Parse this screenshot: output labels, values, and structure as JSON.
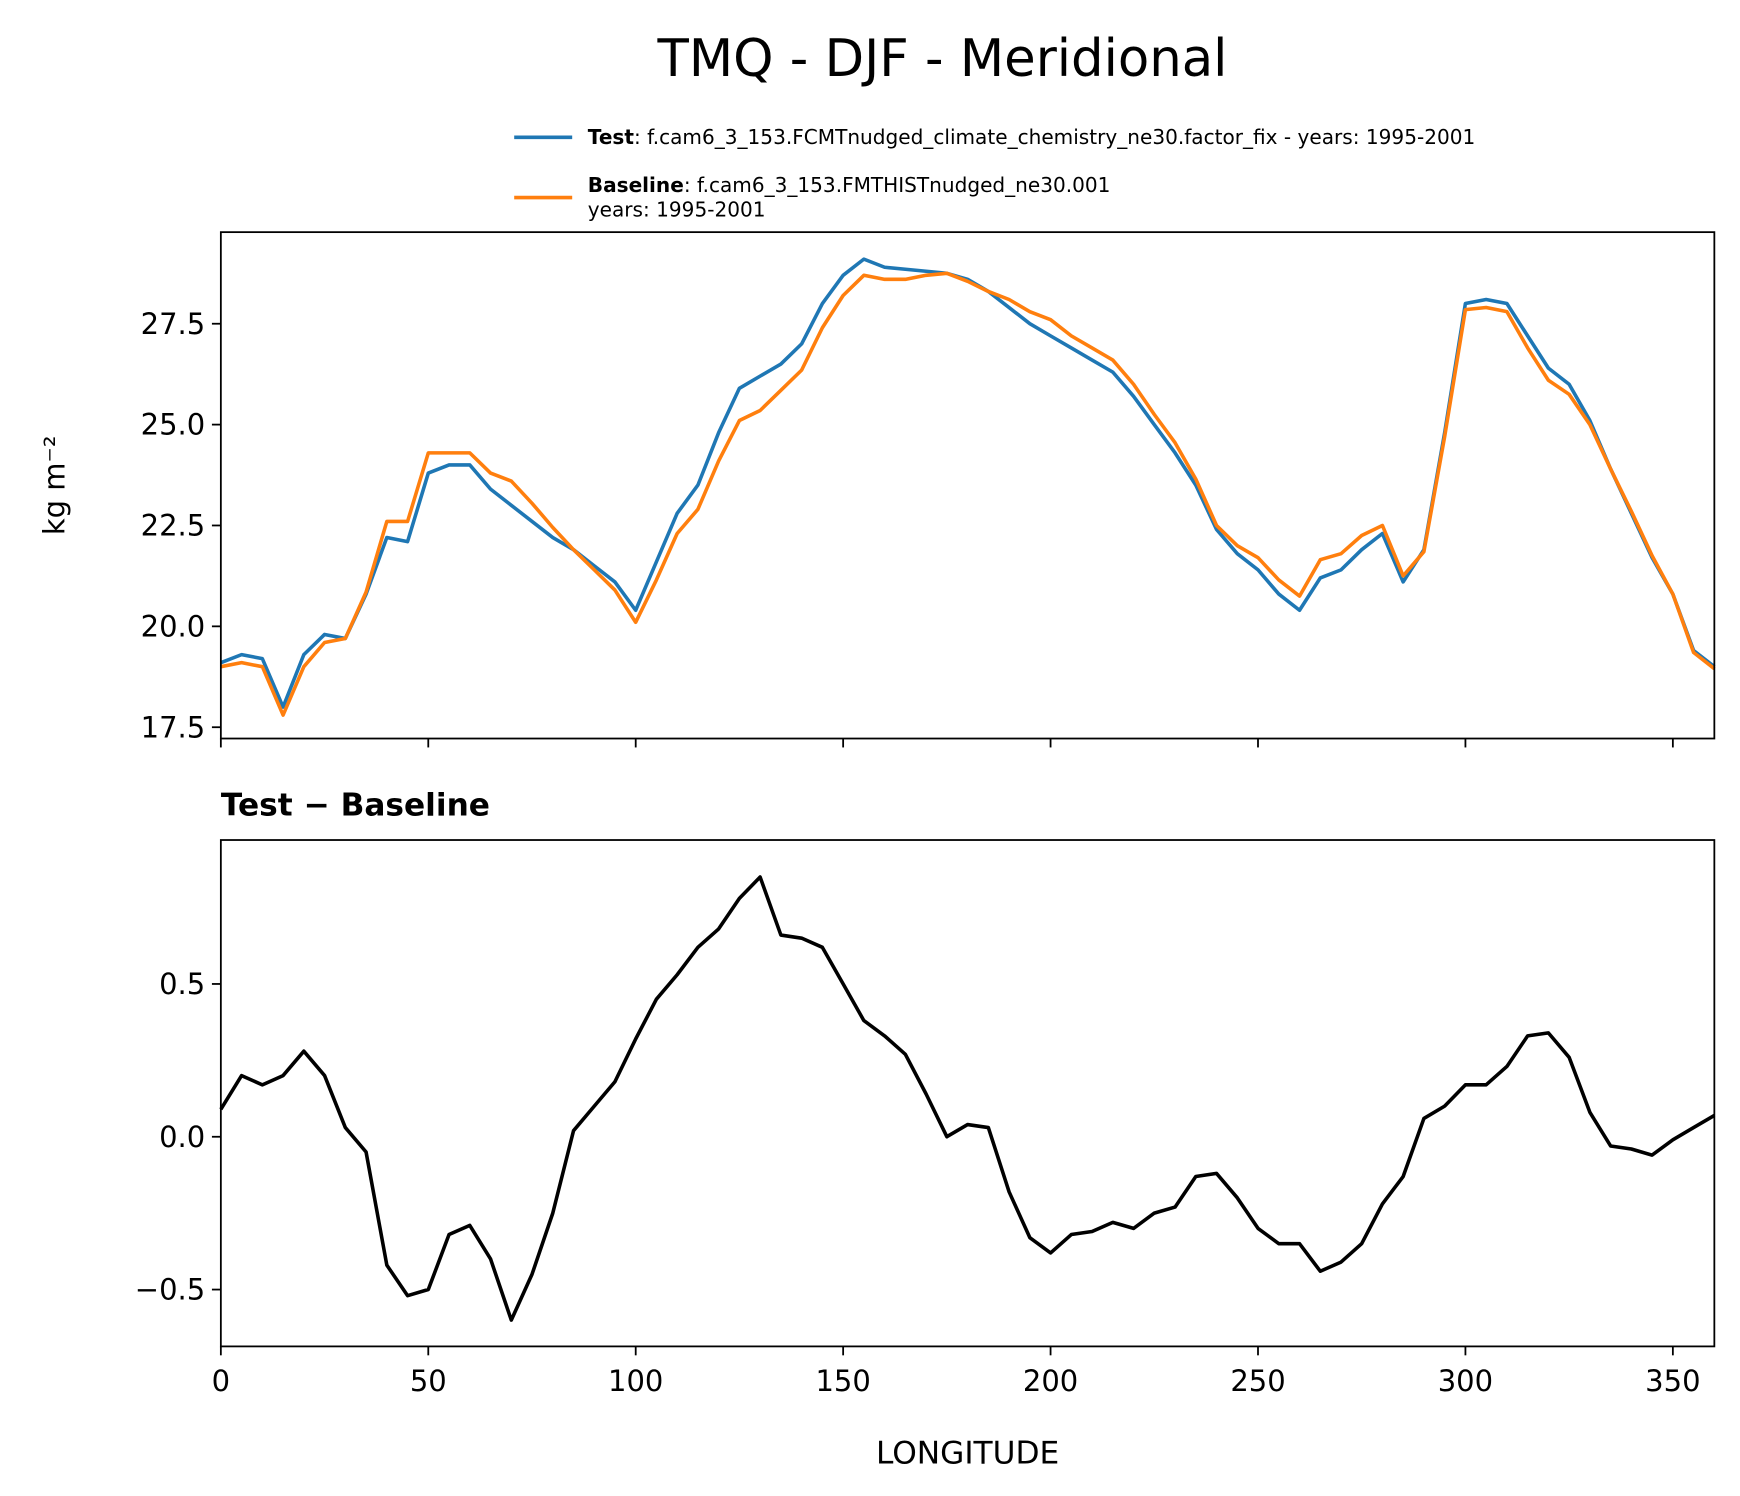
{
  "chart_data": [
    {
      "type": "line",
      "title": "TMQ - DJF - Meridional",
      "ylabel": "kg m⁻²",
      "x": [
        0,
        5,
        10,
        15,
        20,
        25,
        30,
        35,
        40,
        45,
        50,
        55,
        60,
        65,
        70,
        75,
        80,
        85,
        90,
        95,
        100,
        105,
        110,
        115,
        120,
        125,
        130,
        135,
        140,
        145,
        150,
        155,
        160,
        165,
        170,
        175,
        180,
        185,
        190,
        195,
        200,
        205,
        210,
        215,
        220,
        225,
        230,
        235,
        240,
        245,
        250,
        255,
        260,
        265,
        270,
        275,
        280,
        285,
        290,
        295,
        300,
        305,
        310,
        315,
        320,
        325,
        330,
        335,
        340,
        345,
        350,
        355,
        360
      ],
      "xlim": [
        0,
        360
      ],
      "xticks": [
        0,
        50,
        100,
        150,
        200,
        250,
        300,
        350
      ],
      "ylim": [
        17.22,
        29.77
      ],
      "yticks": [
        17.5,
        {
          "value": 20,
          "label": "20.0"
        },
        22.5,
        {
          "value": 25,
          "label": "25.0"
        },
        27.5
      ],
      "series": [
        {
          "name": "Test",
          "description": [
            ": f.cam6_3_153.FCMTnudged_climate_chemistry_ne30.factor_fix - years: 1995-2001"
          ],
          "color": "#1f77b4",
          "values": [
            19.1,
            19.3,
            19.2,
            18.0,
            19.3,
            19.8,
            19.7,
            20.8,
            22.2,
            22.1,
            23.8,
            24.0,
            24.0,
            23.4,
            23.0,
            22.6,
            22.2,
            21.9,
            21.5,
            21.1,
            20.4,
            21.6,
            22.8,
            23.5,
            24.8,
            25.9,
            26.2,
            26.5,
            27.0,
            28.0,
            28.7,
            29.1,
            28.9,
            28.85,
            28.8,
            28.75,
            28.6,
            28.3,
            27.9,
            27.5,
            27.2,
            26.9,
            26.6,
            26.3,
            25.7,
            25.0,
            24.3,
            23.5,
            22.4,
            21.8,
            21.4,
            20.8,
            20.4,
            21.2,
            21.4,
            21.9,
            22.3,
            21.1,
            21.9,
            24.8,
            28.0,
            28.1,
            28.0,
            27.2,
            26.4,
            26.0,
            25.1,
            23.9,
            22.8,
            21.7,
            20.8,
            19.4,
            19.0
          ]
        },
        {
          "name": "Baseline",
          "description": [
            ": f.cam6_3_153.FMTHISTnudged_ne30.001",
            "years: 1995-2001"
          ],
          "color": "#ff7f0e",
          "values": [
            19.0,
            19.1,
            19.0,
            17.8,
            19.0,
            19.6,
            19.7,
            20.85,
            22.6,
            22.6,
            24.3,
            24.3,
            24.3,
            23.8,
            23.6,
            23.05,
            22.45,
            21.9,
            21.4,
            20.9,
            20.1,
            21.15,
            22.3,
            22.9,
            24.1,
            25.1,
            25.35,
            25.85,
            26.35,
            27.4,
            28.2,
            28.7,
            28.6,
            28.6,
            28.7,
            28.75,
            28.55,
            28.3,
            28.1,
            27.8,
            27.6,
            27.2,
            26.9,
            26.6,
            26.0,
            25.25,
            24.55,
            23.65,
            22.5,
            22.0,
            21.7,
            21.15,
            20.75,
            21.65,
            21.8,
            22.25,
            22.5,
            21.25,
            21.85,
            24.7,
            27.85,
            27.9,
            27.8,
            26.9,
            26.1,
            25.75,
            25.0,
            23.9,
            22.85,
            21.75,
            20.8,
            19.35,
            18.95
          ]
        }
      ]
    },
    {
      "type": "line",
      "title": "Test − Baseline",
      "xlabel": "LONGITUDE",
      "x": [
        0,
        5,
        10,
        15,
        20,
        25,
        30,
        35,
        40,
        45,
        50,
        55,
        60,
        65,
        70,
        75,
        80,
        85,
        90,
        95,
        100,
        105,
        110,
        115,
        120,
        125,
        130,
        135,
        140,
        145,
        150,
        155,
        160,
        165,
        170,
        175,
        180,
        185,
        190,
        195,
        200,
        205,
        210,
        215,
        220,
        225,
        230,
        235,
        240,
        245,
        250,
        255,
        260,
        265,
        270,
        275,
        280,
        285,
        290,
        295,
        300,
        305,
        310,
        315,
        320,
        325,
        330,
        335,
        340,
        345,
        350,
        355,
        360
      ],
      "xlim": [
        0,
        360
      ],
      "xticks": [
        0,
        50,
        100,
        150,
        200,
        250,
        300,
        350
      ],
      "ylim": [
        -0.686,
        0.971
      ],
      "yticks": [
        {
          "value": -0.5,
          "label": "−0.5"
        },
        {
          "value": 0,
          "label": "0.0"
        },
        0.5
      ],
      "series": [
        {
          "color": "#000000",
          "values": [
            0.09,
            0.2,
            0.17,
            0.2,
            0.28,
            0.2,
            0.03,
            -0.05,
            -0.42,
            -0.52,
            -0.5,
            -0.32,
            -0.29,
            -0.4,
            -0.6,
            -0.45,
            -0.25,
            0.02,
            0.1,
            0.18,
            0.32,
            0.45,
            0.53,
            0.62,
            0.68,
            0.78,
            0.85,
            0.66,
            0.65,
            0.62,
            0.5,
            0.38,
            0.33,
            0.27,
            0.14,
            0.0,
            0.04,
            0.03,
            -0.18,
            -0.33,
            -0.38,
            -0.32,
            -0.31,
            -0.28,
            -0.3,
            -0.25,
            -0.23,
            -0.13,
            -0.12,
            -0.2,
            -0.3,
            -0.35,
            -0.35,
            -0.44,
            -0.41,
            -0.35,
            -0.22,
            -0.13,
            0.06,
            0.1,
            0.17,
            0.17,
            0.23,
            0.33,
            0.34,
            0.26,
            0.08,
            -0.03,
            -0.04,
            -0.06,
            -0.01,
            0.03,
            0.07
          ]
        }
      ]
    }
  ]
}
